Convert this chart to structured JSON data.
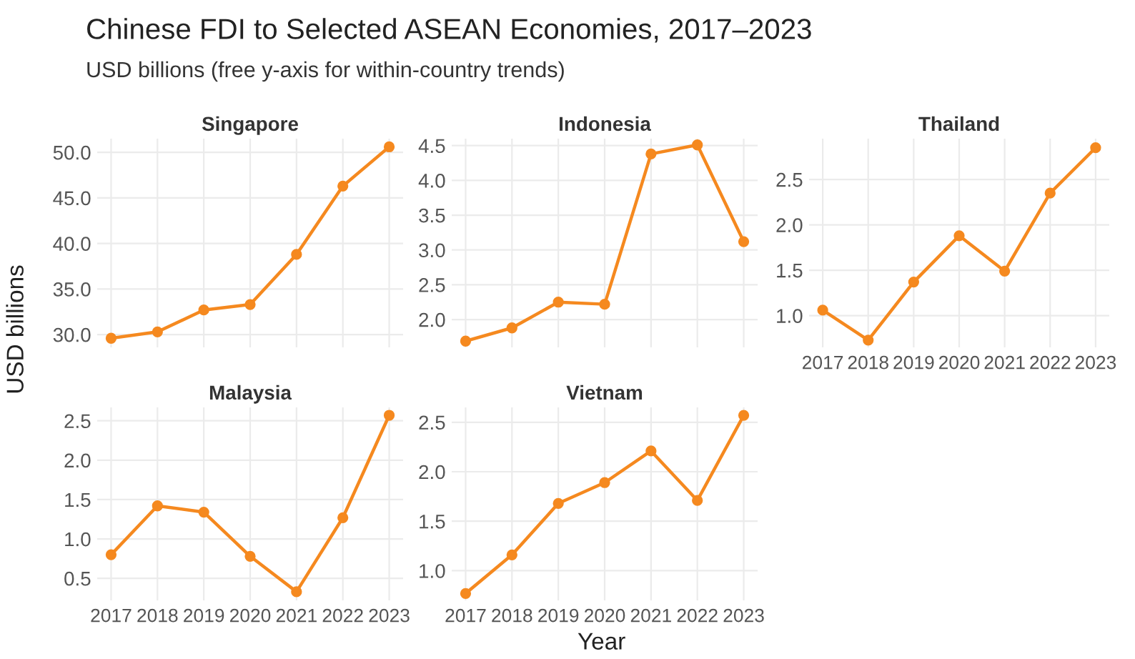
{
  "chart_data": [
    {
      "type": "line",
      "title": "Chinese FDI to Selected ASEAN Economies, 2017–2023",
      "subtitle": "USD billions (free y-axis for within-country trends)",
      "ylabel": "USD billions",
      "x": [
        2017,
        2018,
        2019,
        2020,
        2021,
        2022,
        2023
      ],
      "xlim": [
        2016.7,
        2023.3
      ],
      "xticks": [
        2017,
        2018,
        2019,
        2020,
        2021,
        2022,
        2023
      ],
      "ylim": [
        28.6,
        51.5
      ],
      "yticks": [
        {
          "value": 30,
          "label": "30.0"
        },
        {
          "value": 35,
          "label": "35.0"
        },
        {
          "value": 40,
          "label": "40.0"
        },
        {
          "value": 45,
          "label": "45.0"
        },
        {
          "value": 50,
          "label": "50.0"
        }
      ],
      "tick_labels": "y",
      "grid": true,
      "marker": "circle",
      "line_style": "solid",
      "series": [
        {
          "name": "Singapore",
          "color": "#f5891f",
          "values": [
            29.6,
            30.3,
            32.7,
            33.3,
            38.8,
            46.3,
            50.6
          ]
        }
      ]
    },
    {
      "type": "line",
      "x": [
        2017,
        2018,
        2019,
        2020,
        2021,
        2022,
        2023
      ],
      "xlim": [
        2016.7,
        2023.3
      ],
      "xticks": [
        2017,
        2018,
        2019,
        2020,
        2021,
        2022,
        2023
      ],
      "ylim": [
        1.6,
        4.6
      ],
      "yticks": [
        {
          "value": 2,
          "label": "2.0"
        },
        2.5,
        {
          "value": 3,
          "label": "3.0"
        },
        3.5,
        {
          "value": 4,
          "label": "4.0"
        },
        4.5
      ],
      "tick_labels": "y",
      "grid": true,
      "marker": "circle",
      "line_style": "solid",
      "series": [
        {
          "name": "Indonesia",
          "color": "#f5891f",
          "values": [
            1.69,
            1.88,
            2.25,
            2.22,
            4.38,
            4.51,
            3.12
          ]
        }
      ]
    },
    {
      "type": "line",
      "x": [
        2017,
        2018,
        2019,
        2020,
        2021,
        2022,
        2023
      ],
      "xlim": [
        2016.7,
        2023.3
      ],
      "xticks": [
        2017,
        2018,
        2019,
        2020,
        2021,
        2022,
        2023
      ],
      "ylim": [
        0.65,
        2.95
      ],
      "yticks": [
        {
          "value": 1,
          "label": "1.0"
        },
        1.5,
        {
          "value": 2,
          "label": "2.0"
        },
        2.5
      ],
      "grid": true,
      "marker": "circle",
      "line_style": "solid",
      "series": [
        {
          "name": "Thailand",
          "color": "#f5891f",
          "values": [
            1.06,
            0.73,
            1.37,
            1.88,
            1.49,
            2.35,
            2.85
          ]
        }
      ]
    },
    {
      "type": "line",
      "x": [
        2017,
        2018,
        2019,
        2020,
        2021,
        2022,
        2023
      ],
      "xlim": [
        2016.7,
        2023.3
      ],
      "xticks": [
        2017,
        2018,
        2019,
        2020,
        2021,
        2022,
        2023
      ],
      "ylim": [
        0.22,
        2.67
      ],
      "yticks": [
        0.5,
        {
          "value": 1,
          "label": "1.0"
        },
        1.5,
        {
          "value": 2,
          "label": "2.0"
        },
        2.5
      ],
      "grid": true,
      "marker": "circle",
      "line_style": "solid",
      "series": [
        {
          "name": "Malaysia",
          "color": "#f5891f",
          "values": [
            0.8,
            1.42,
            1.34,
            0.78,
            0.33,
            1.27,
            2.57
          ]
        }
      ]
    },
    {
      "type": "line",
      "xlabel": "Year",
      "x": [
        2017,
        2018,
        2019,
        2020,
        2021,
        2022,
        2023
      ],
      "xlim": [
        2016.7,
        2023.3
      ],
      "xticks": [
        2017,
        2018,
        2019,
        2020,
        2021,
        2022,
        2023
      ],
      "ylim": [
        0.7,
        2.65
      ],
      "yticks": [
        {
          "value": 1,
          "label": "1.0"
        },
        1.5,
        {
          "value": 2,
          "label": "2.0"
        },
        2.5
      ],
      "grid": true,
      "marker": "circle",
      "line_style": "solid",
      "series": [
        {
          "name": "Vietnam",
          "color": "#f5891f",
          "values": [
            0.77,
            1.16,
            1.68,
            1.89,
            2.21,
            1.71,
            2.57
          ]
        }
      ]
    }
  ]
}
